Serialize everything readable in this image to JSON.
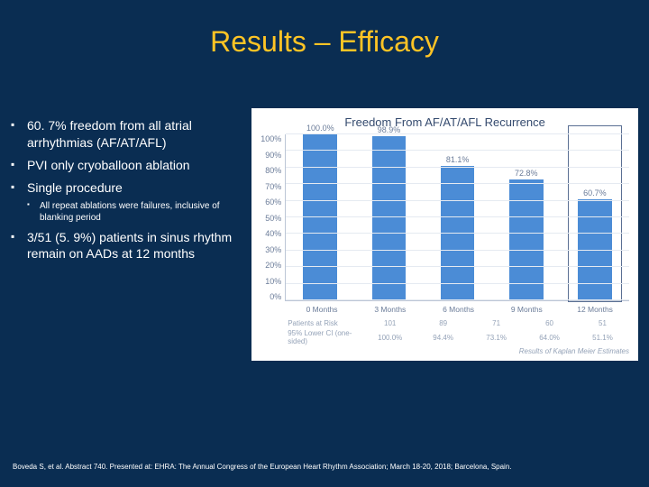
{
  "title": "Results – Efficacy",
  "bullets": {
    "b1": "60. 7% freedom from all atrial arrhythmias (AF/AT/AFL)",
    "b2": "PVI only cryoballoon ablation",
    "b3": "Single procedure",
    "b3_sub": "All repeat ablations were failures, inclusive of blanking period",
    "b4": "3/51 (5. 9%) patients in sinus rhythm remain on AADs at 12 months"
  },
  "chart": {
    "title": "Freedom From AF/AT/AFL Recurrence",
    "type": "bar",
    "y_ticks": [
      "100%",
      "90%",
      "80%",
      "70%",
      "60%",
      "50%",
      "40%",
      "30%",
      "20%",
      "10%",
      "0%"
    ],
    "y_max": 100,
    "categories": [
      "0 Months",
      "3 Months",
      "6 Months",
      "9 Months",
      "12 Months"
    ],
    "values": [
      100.0,
      98.9,
      81.1,
      72.8,
      60.7
    ],
    "value_labels": [
      "100.0%",
      "98.9%",
      "81.1%",
      "72.8%",
      "60.7%"
    ],
    "bar_color": "#4b8cd6",
    "grid_color": "#e5eaf1",
    "axis_color": "#bcc6d6",
    "text_color": "#6b7c99",
    "background": "#ffffff",
    "highlight_index": 4,
    "highlight_color": "#5a6f93",
    "rows": {
      "patients_label": "Patients at Risk",
      "patients": [
        "101",
        "89",
        "71",
        "60",
        "51"
      ],
      "lower_label": "95% Lower CI (one-sided)",
      "lower": [
        "100.0%",
        "94.4%",
        "73.1%",
        "64.0%",
        "51.1%"
      ]
    },
    "km_caption": "Results of Kaplan Meier Estimates"
  },
  "citation": "Boveda S, et al. Abstract 740. Presented at: EHRA: The Annual Congress of the European Heart Rhythm Association; March 18-20, 2018; Barcelona, Spain."
}
